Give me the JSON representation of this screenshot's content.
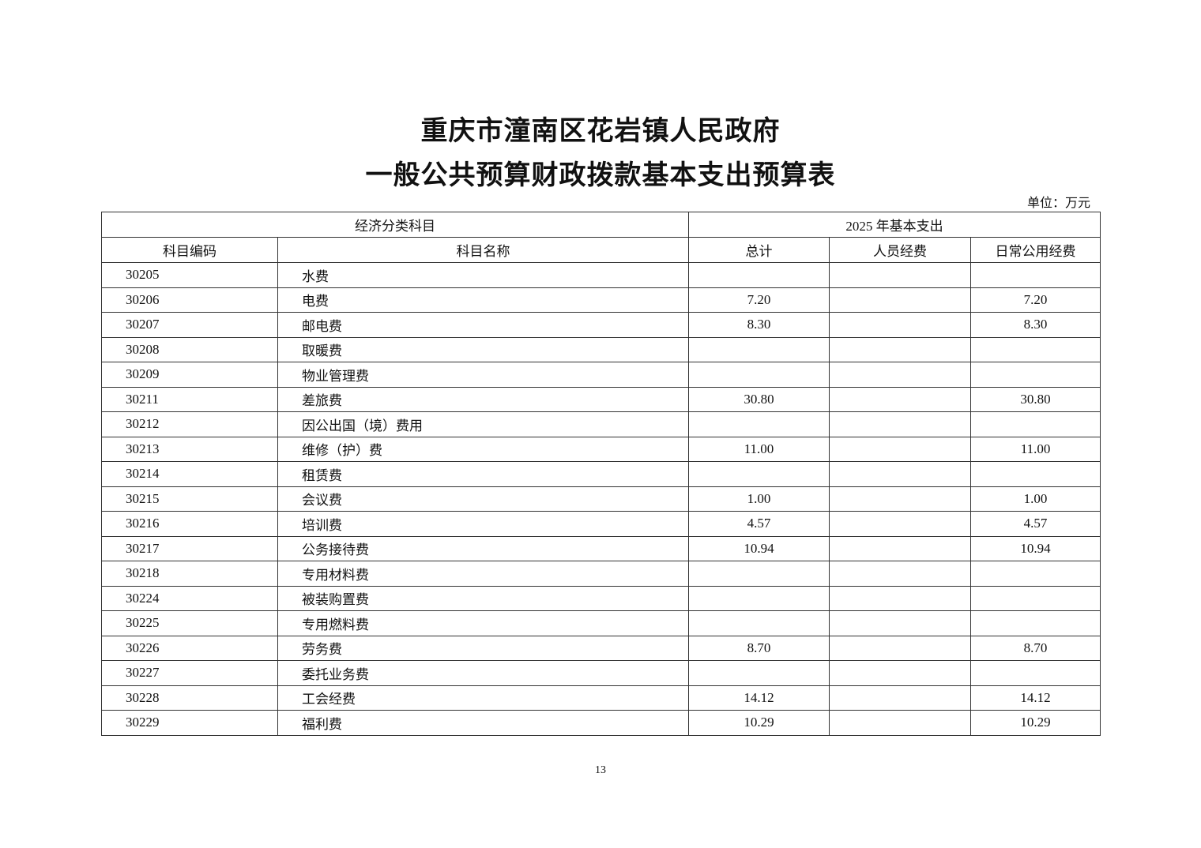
{
  "title_line1": "重庆市潼南区花岩镇人民政府",
  "title_line2": "一般公共预算财政拨款基本支出预算表",
  "unit": "单位：万元",
  "header": {
    "group1": "经济分类科目",
    "group2": "2025 年基本支出",
    "columns": [
      "科目编码",
      "科目名称",
      "总计",
      "人员经费",
      "日常公用经费"
    ]
  },
  "rows": [
    {
      "code": "30205",
      "name": "水费",
      "total": "",
      "personnel": "",
      "public": ""
    },
    {
      "code": "30206",
      "name": "电费",
      "total": "7.20",
      "personnel": "",
      "public": "7.20"
    },
    {
      "code": "30207",
      "name": "邮电费",
      "total": "8.30",
      "personnel": "",
      "public": "8.30"
    },
    {
      "code": "30208",
      "name": "取暖费",
      "total": "",
      "personnel": "",
      "public": ""
    },
    {
      "code": "30209",
      "name": "物业管理费",
      "total": "",
      "personnel": "",
      "public": ""
    },
    {
      "code": "30211",
      "name": "差旅费",
      "total": "30.80",
      "personnel": "",
      "public": "30.80"
    },
    {
      "code": "30212",
      "name": "因公出国（境）费用",
      "total": "",
      "personnel": "",
      "public": ""
    },
    {
      "code": "30213",
      "name": "维修（护）费",
      "total": "11.00",
      "personnel": "",
      "public": "11.00"
    },
    {
      "code": "30214",
      "name": "租赁费",
      "total": "",
      "personnel": "",
      "public": ""
    },
    {
      "code": "30215",
      "name": "会议费",
      "total": "1.00",
      "personnel": "",
      "public": "1.00"
    },
    {
      "code": "30216",
      "name": "培训费",
      "total": "4.57",
      "personnel": "",
      "public": "4.57"
    },
    {
      "code": "30217",
      "name": "公务接待费",
      "total": "10.94",
      "personnel": "",
      "public": "10.94"
    },
    {
      "code": "30218",
      "name": "专用材料费",
      "total": "",
      "personnel": "",
      "public": ""
    },
    {
      "code": "30224",
      "name": "被装购置费",
      "total": "",
      "personnel": "",
      "public": ""
    },
    {
      "code": "30225",
      "name": "专用燃料费",
      "total": "",
      "personnel": "",
      "public": ""
    },
    {
      "code": "30226",
      "name": "劳务费",
      "total": "8.70",
      "personnel": "",
      "public": "8.70"
    },
    {
      "code": "30227",
      "name": "委托业务费",
      "total": "",
      "personnel": "",
      "public": ""
    },
    {
      "code": "30228",
      "name": "工会经费",
      "total": "14.12",
      "personnel": "",
      "public": "14.12"
    },
    {
      "code": "30229",
      "name": "福利费",
      "total": "10.29",
      "personnel": "",
      "public": "10.29"
    }
  ],
  "page_number": "13"
}
